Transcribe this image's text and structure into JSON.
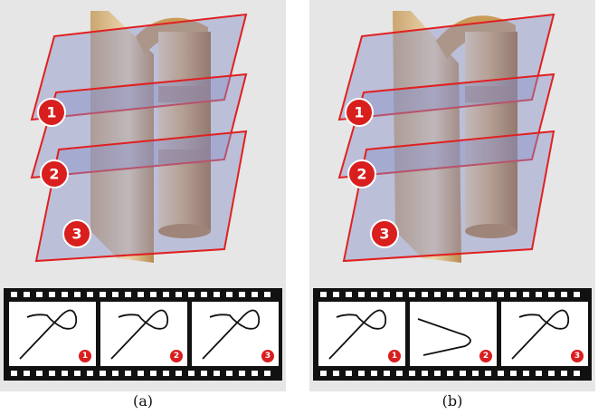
{
  "panels": [
    {
      "caption": "(a)",
      "plane_labels": [
        "1",
        "2",
        "3"
      ],
      "frame_labels": [
        "1",
        "2",
        "3"
      ],
      "frame_curves": [
        "loop",
        "loop",
        "loop"
      ]
    },
    {
      "caption": "(b)",
      "plane_labels": [
        "1",
        "2",
        "3"
      ],
      "frame_labels": [
        "1",
        "2",
        "3"
      ],
      "frame_curves": [
        "loop",
        "fold",
        "loop"
      ]
    }
  ],
  "colors": {
    "plane_stroke": "#e02020",
    "plane_fill": "#8a90c8",
    "badge": "#d91e1e",
    "surface_light": "#e8cfa0",
    "surface_dark": "#b07a3a"
  }
}
